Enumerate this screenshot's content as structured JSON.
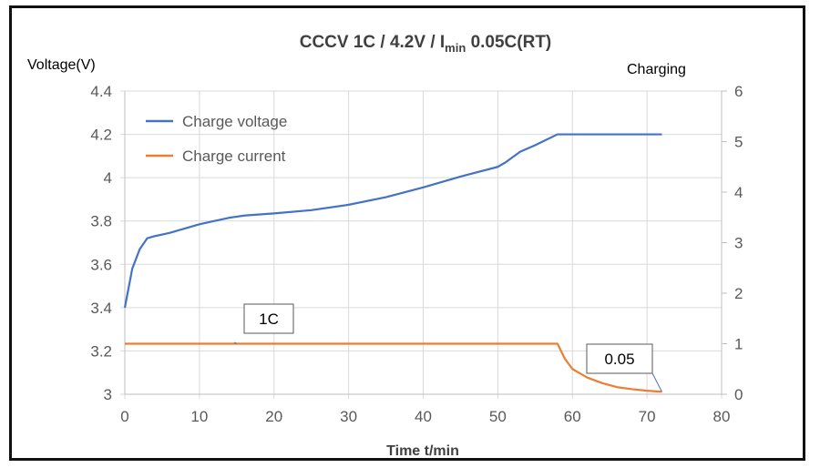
{
  "chart_data": {
    "type": "line",
    "title": "CCCV 1C  / 4.2V  /  I",
    "title_sub": "min",
    "title_tail": " 0.05C(RT)",
    "xlabel": "Time t/min",
    "ylabel": "Voltage(V)",
    "y2label": "Charging",
    "xlim": [
      0,
      80
    ],
    "ylim": [
      3,
      4.4
    ],
    "y2lim": [
      0,
      6
    ],
    "xticks": [
      "0",
      "10",
      "20",
      "30",
      "40",
      "50",
      "60",
      "70",
      "80"
    ],
    "yticks": [
      "3",
      "3.2",
      "3.4",
      "3.6",
      "3.8",
      "4",
      "4.2",
      "4.4"
    ],
    "y2ticks": [
      "0",
      "1",
      "2",
      "3",
      "4",
      "5",
      "6"
    ],
    "grid": true,
    "legend_placement": "top-left",
    "series": [
      {
        "name": "Charge voltage",
        "axis": "left",
        "color": "#4472C4",
        "x": [
          0,
          1,
          2,
          3,
          4,
          6,
          8,
          10,
          12,
          14,
          16,
          20,
          25,
          30,
          35,
          40,
          45,
          50,
          51,
          53,
          55,
          58,
          72
        ],
        "y": [
          3.4,
          3.58,
          3.67,
          3.72,
          3.73,
          3.745,
          3.765,
          3.785,
          3.8,
          3.815,
          3.825,
          3.835,
          3.85,
          3.875,
          3.91,
          3.955,
          4.005,
          4.05,
          4.07,
          4.12,
          4.15,
          4.2,
          4.2
        ]
      },
      {
        "name": "Charge current",
        "axis": "right",
        "color": "#ED7D31",
        "x": [
          0,
          58,
          59,
          60,
          62,
          64,
          66,
          68,
          70,
          72
        ],
        "y": [
          1,
          1,
          0.7,
          0.5,
          0.33,
          0.22,
          0.14,
          0.1,
          0.07,
          0.05
        ]
      }
    ],
    "annotations": [
      {
        "text": "1C",
        "x": 15,
        "y": 1,
        "axis": "right"
      },
      {
        "text": "0.05",
        "x": 72,
        "y": 0.05,
        "axis": "right"
      }
    ]
  }
}
